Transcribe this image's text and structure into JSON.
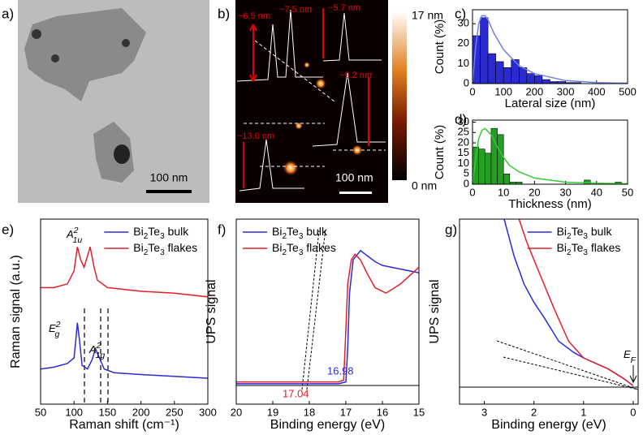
{
  "tem_image": {
    "panel_label": "a)",
    "scale_bar": "100 nm"
  },
  "afm_image": {
    "panel_label": "b)",
    "heights": [
      "~6.5 nm",
      "~7.5 nm",
      "~5.7 nm",
      "~9.2 nm",
      "~13.0 nm"
    ],
    "colorbar_max": "17 nm",
    "colorbar_min": "0 nm",
    "scale_bar": "100 nm"
  },
  "chart_data": [
    {
      "type": "histogram",
      "panel_label": "c)",
      "x_label": "Lateral size (nm)",
      "y_label": "Count (%)",
      "color": "#2a2ad0",
      "bins": [
        0,
        25,
        50,
        75,
        100,
        125,
        150,
        175,
        200,
        225,
        250,
        275,
        300,
        325,
        350,
        375,
        400,
        425,
        450,
        475,
        500
      ],
      "values": [
        24,
        33,
        15,
        11,
        8,
        12,
        8,
        5,
        4,
        2,
        1,
        1,
        0.5,
        0.5,
        0,
        0,
        0,
        0,
        0,
        0
      ],
      "fit": {
        "color": "#6f7ff0",
        "x": [
          0,
          10,
          20,
          30,
          40,
          50,
          70,
          100,
          150,
          200,
          300,
          400,
          500
        ],
        "y": [
          0,
          18,
          30,
          34,
          34,
          32,
          25,
          17,
          9,
          5,
          1.5,
          0.5,
          0.2
        ]
      },
      "xlim": [
        0,
        500
      ],
      "xticks": [
        0,
        100,
        200,
        300,
        400,
        500
      ],
      "ylim": [
        0,
        37
      ],
      "yticks": [
        0,
        10,
        20,
        30
      ]
    },
    {
      "type": "histogram",
      "panel_label": "d)",
      "x_label": "Thickness (nm)",
      "y_label": "Count (%)",
      "color": "#22a022",
      "bins": [
        0,
        2,
        4,
        6,
        8,
        10,
        12,
        14,
        16,
        18,
        20,
        22,
        24,
        26,
        28,
        30,
        32,
        34,
        36,
        38,
        40,
        42,
        44,
        46,
        48,
        50
      ],
      "values": [
        18,
        17,
        15,
        27,
        24,
        5,
        1,
        1,
        0,
        0,
        0,
        0,
        0,
        0,
        0,
        0,
        0,
        0,
        2,
        0,
        0,
        0,
        0,
        1,
        0
      ],
      "fit": {
        "color": "#33cc33",
        "x": [
          0,
          1,
          2,
          3,
          4,
          6,
          8,
          10,
          12,
          15,
          20,
          30,
          40,
          50
        ],
        "y": [
          0,
          12,
          22,
          26,
          27,
          24,
          18,
          13,
          9,
          6,
          3,
          1,
          0.5,
          0.2
        ]
      },
      "xlim": [
        0,
        50
      ],
      "xticks": [
        0,
        10,
        20,
        30,
        40,
        50
      ],
      "ylim": [
        0,
        31
      ],
      "yticks": [
        0,
        5,
        10,
        15,
        20,
        25,
        30
      ]
    },
    {
      "type": "line",
      "panel_label": "e)",
      "x_label": "Raman shift (cm⁻¹)",
      "y_label": "Raman signal (a.u.)",
      "legend": "upper right",
      "annotations": [
        {
          "base": "A",
          "sup": "2",
          "sub": "1u"
        },
        {
          "base": "E",
          "sup": "2",
          "sub": "g"
        },
        {
          "base": "A",
          "sup": "2",
          "sub": "1g"
        }
      ],
      "series": [
        {
          "name": "Bi2Te3 bulk",
          "color": "#2b2bd8",
          "x": [
            50,
            70,
            90,
            100,
            103,
            105,
            108,
            112,
            120,
            127,
            132,
            138,
            145,
            160,
            200,
            250,
            300
          ],
          "values": [
            0.19,
            0.2,
            0.22,
            0.25,
            0.36,
            0.44,
            0.35,
            0.21,
            0.19,
            0.24,
            0.3,
            0.25,
            0.19,
            0.17,
            0.16,
            0.15,
            0.14
          ]
        },
        {
          "name": "Bi2Te3 flakes",
          "color": "#e0202a",
          "x": [
            50,
            70,
            90,
            100,
            105,
            110,
            115,
            120,
            124,
            130,
            135,
            150,
            200,
            250,
            300
          ],
          "values": [
            0.63,
            0.63,
            0.65,
            0.72,
            0.85,
            0.78,
            0.74,
            0.8,
            0.85,
            0.74,
            0.67,
            0.63,
            0.61,
            0.6,
            0.58
          ]
        }
      ],
      "xlim": [
        50,
        300
      ],
      "xticks": [
        50,
        100,
        150,
        200,
        250,
        300
      ],
      "ylim": [
        0,
        1
      ]
    },
    {
      "type": "line",
      "panel_label": "f)",
      "x_label": "Binding energy (eV)",
      "y_label": "UPS signal",
      "legend": "upper left",
      "annotations": [
        "16.98",
        "17.04"
      ],
      "series": [
        {
          "name": "Bi2Te3 bulk",
          "color": "#2b2bd8",
          "x": [
            20,
            19,
            18,
            17.2,
            17.0,
            16.95,
            16.9,
            16.8,
            16.6,
            16.4,
            16.2,
            16.0,
            15.5,
            15
          ],
          "values": [
            0.11,
            0.11,
            0.11,
            0.11,
            0.12,
            0.3,
            0.6,
            0.78,
            0.83,
            0.8,
            0.77,
            0.75,
            0.73,
            0.71
          ]
        },
        {
          "name": "Bi2Te3 flakes",
          "color": "#e0202a",
          "x": [
            20,
            19,
            18,
            17.2,
            17.06,
            17.0,
            16.95,
            16.85,
            16.75,
            16.6,
            16.4,
            16.2,
            15.9,
            15.5,
            15
          ],
          "values": [
            0.12,
            0.12,
            0.12,
            0.12,
            0.13,
            0.4,
            0.65,
            0.78,
            0.81,
            0.78,
            0.7,
            0.63,
            0.6,
            0.65,
            0.74
          ]
        }
      ],
      "xlim": [
        20,
        15
      ],
      "xticks": [
        20,
        19,
        18,
        17,
        16,
        15
      ],
      "ylim": [
        0,
        1
      ]
    },
    {
      "type": "line",
      "panel_label": "g)",
      "x_label": "Binding energy (eV)",
      "y_label": "UPS signal",
      "legend": "upper right",
      "annotations": [
        {
          "base": "E",
          "sub": "F"
        }
      ],
      "series": [
        {
          "name": "Bi2Te3 bulk",
          "color": "#2b2bd8",
          "x": [
            2.6,
            2.4,
            2.2,
            2.0,
            1.8,
            1.5,
            1.2,
            1.0,
            0.5,
            0.2,
            0
          ],
          "values": [
            1.0,
            0.8,
            0.65,
            0.55,
            0.47,
            0.34,
            0.28,
            0.25,
            0.19,
            0.14,
            0.1
          ]
        },
        {
          "name": "Bi2Te3 flakes",
          "color": "#e0202a",
          "x": [
            2.3,
            2.15,
            2.0,
            1.8,
            1.6,
            1.3,
            1.0,
            0.5,
            0.2,
            0
          ],
          "values": [
            1.0,
            0.88,
            0.78,
            0.65,
            0.52,
            0.34,
            0.25,
            0.19,
            0.14,
            0.1
          ]
        }
      ],
      "xlim": [
        3.5,
        -0.1
      ],
      "xticks": [
        3,
        2,
        1,
        0
      ],
      "ylim": [
        0,
        1
      ]
    }
  ]
}
